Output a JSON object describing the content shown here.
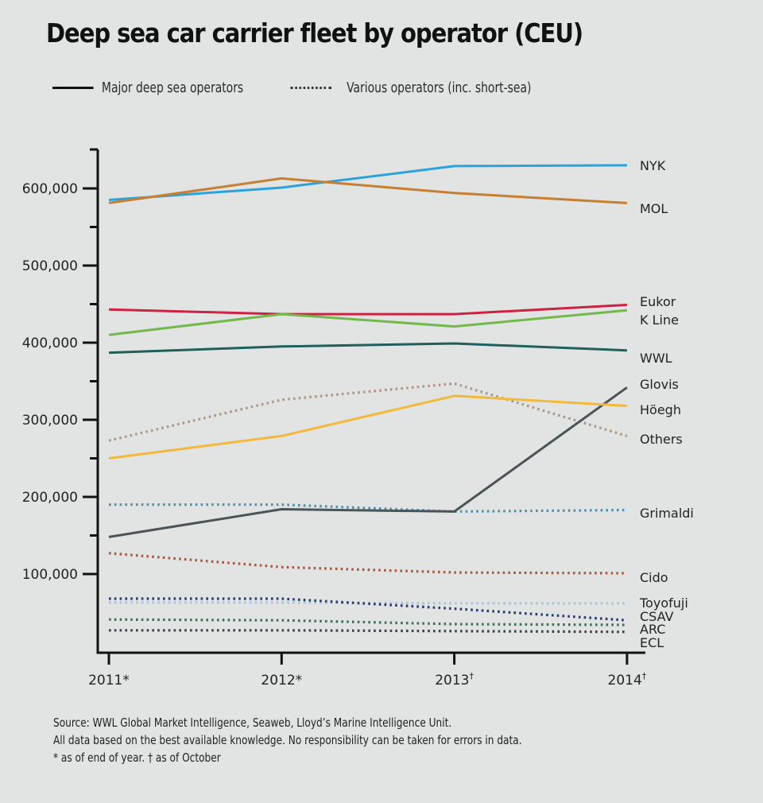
{
  "chart_data": {
    "type": "line",
    "title": "Deep sea car carrier fleet by operator (CEU)",
    "xlabel": "",
    "ylabel": "",
    "ylim": [
      0,
      650000
    ],
    "grid": false,
    "legend": {
      "placement": "top-left",
      "entries": [
        {
          "label": "Major deep sea operators",
          "style": "solid"
        },
        {
          "label": "Various operators (inc. short-sea)",
          "style": "dotted"
        }
      ]
    },
    "categories": [
      "2011*",
      "2012*",
      "2013†",
      "2014†"
    ],
    "y_ticks": [
      {
        "value": 100000,
        "label": "100,000"
      },
      {
        "value": 200000,
        "label": "200,000"
      },
      {
        "value": 300000,
        "label": "300,000"
      },
      {
        "value": 400000,
        "label": "400,000"
      },
      {
        "value": 500000,
        "label": "500,000"
      },
      {
        "value": 600000,
        "label": "600,000"
      }
    ],
    "y_minor_ticks": [
      150000,
      250000,
      350000,
      450000,
      550000
    ],
    "series": [
      {
        "name": "NYK",
        "style": "solid",
        "color": "#2aa3dc",
        "values": [
          585000,
          601000,
          629000,
          630000
        ]
      },
      {
        "name": "MOL",
        "style": "solid",
        "color": "#c77f32",
        "values": [
          581000,
          613000,
          594000,
          581000
        ]
      },
      {
        "name": "Eukor",
        "style": "solid",
        "color": "#cc2244",
        "values": [
          443000,
          437000,
          437000,
          449000
        ]
      },
      {
        "name": "K Line",
        "style": "solid",
        "color": "#72b84a",
        "values": [
          410000,
          437000,
          421000,
          442000
        ]
      },
      {
        "name": "WWL",
        "style": "solid",
        "color": "#1f5f5c",
        "values": [
          387000,
          395000,
          399000,
          390000
        ]
      },
      {
        "name": "Glovis",
        "style": "solid",
        "color": "#4b5558",
        "values": [
          148000,
          184000,
          181000,
          342000
        ]
      },
      {
        "name": "Höegh",
        "style": "solid",
        "color": "#f2b93b",
        "values": [
          250000,
          279000,
          331000,
          318000
        ]
      },
      {
        "name": "Others",
        "style": "dotted",
        "color": "#b09580",
        "values": [
          273000,
          326000,
          347000,
          279000
        ]
      },
      {
        "name": "Grimaldi",
        "style": "dotted",
        "color": "#4f8fb0",
        "values": [
          190000,
          190000,
          181000,
          183000
        ]
      },
      {
        "name": "Cido",
        "style": "dotted",
        "color": "#a8583f",
        "values": [
          127000,
          109000,
          102000,
          101000
        ]
      },
      {
        "name": "Toyofuji",
        "style": "dotted",
        "color": "#a9c4dd",
        "values": [
          63000,
          63000,
          62000,
          62000
        ]
      },
      {
        "name": "CSAV",
        "style": "dotted",
        "color": "#2a3a70",
        "values": [
          68000,
          68000,
          55000,
          40000
        ]
      },
      {
        "name": "ARC",
        "style": "dotted",
        "color": "#3f6e57",
        "values": [
          41000,
          40000,
          35000,
          34000
        ]
      },
      {
        "name": "ECL",
        "style": "dotted",
        "color": "#3a3f4a",
        "values": [
          27000,
          27000,
          26000,
          25000
        ]
      }
    ],
    "footer": [
      "Source: WWL Global Market Intelligence, Seaweb, Lloyd’s Marine Intelligence Unit.",
      "All data based on the best available knowledge. No responsibility can be taken for errors in data.",
      "* as of end of year. † as of October"
    ]
  }
}
